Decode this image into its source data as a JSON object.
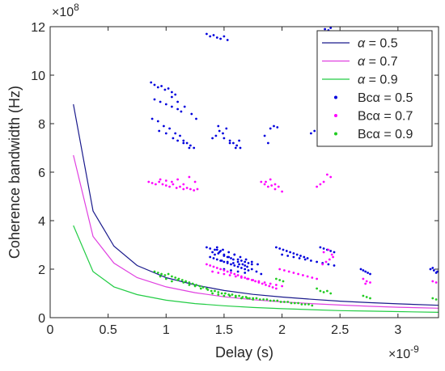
{
  "chart_data": {
    "type": "scatter",
    "title": "",
    "xlabel": "Delay (s)",
    "ylabel": "Coherence bandwidth (Hz)",
    "x_exponent": "×10",
    "x_exponent_power": "-9",
    "y_exponent": "×10",
    "y_exponent_power": "8",
    "xlim": [
      0,
      3.35
    ],
    "ylim": [
      0,
      12
    ],
    "xticks": [
      0,
      0.5,
      1,
      1.5,
      2,
      2.5,
      3
    ],
    "xtick_labels": [
      "0",
      "0.5",
      "1",
      "1.5",
      "2",
      "2.5",
      "3"
    ],
    "yticks": [
      0,
      2,
      4,
      6,
      8,
      10,
      12
    ],
    "ytick_labels": [
      "0",
      "2",
      "4",
      "6",
      "8",
      "10",
      "12"
    ],
    "grid": false,
    "legend_position": "top-right",
    "series": [
      {
        "name": "α = 0.5",
        "name_prefix": "α",
        "name_suffix": " = 0.5",
        "kind": "line",
        "color": "#1a1a8c",
        "x": [
          0.2,
          0.37,
          0.55,
          0.75,
          1.0,
          1.25,
          1.5,
          1.75,
          2.0,
          2.25,
          2.5,
          2.75,
          3.0,
          3.35
        ],
        "y": [
          8.8,
          4.4,
          2.95,
          2.15,
          1.65,
          1.35,
          1.12,
          0.96,
          0.85,
          0.76,
          0.68,
          0.62,
          0.57,
          0.51
        ]
      },
      {
        "name": "α = 0.7",
        "name_prefix": "α",
        "name_suffix": " = 0.7",
        "kind": "line",
        "color": "#e040e0",
        "x": [
          0.2,
          0.37,
          0.55,
          0.75,
          1.0,
          1.25,
          1.5,
          1.75,
          2.0,
          2.25,
          2.5,
          2.75,
          3.0,
          3.35
        ],
        "y": [
          6.7,
          3.35,
          2.25,
          1.65,
          1.27,
          1.03,
          0.86,
          0.74,
          0.65,
          0.58,
          0.52,
          0.47,
          0.43,
          0.39
        ]
      },
      {
        "name": "α = 0.9",
        "name_prefix": "α",
        "name_suffix": " = 0.9",
        "kind": "line",
        "color": "#22cc44",
        "x": [
          0.2,
          0.37,
          0.55,
          0.75,
          1.0,
          1.25,
          1.5,
          1.75,
          2.0,
          2.25,
          2.5,
          2.75,
          3.0,
          3.35
        ],
        "y": [
          3.8,
          1.9,
          1.27,
          0.95,
          0.72,
          0.58,
          0.49,
          0.42,
          0.37,
          0.33,
          0.29,
          0.27,
          0.25,
          0.22
        ]
      },
      {
        "name": "Bcα = 0.5",
        "name_prefix": "Bcα",
        "name_suffix": " = 0.5",
        "kind": "points",
        "color": "#0000dd",
        "x": [
          0.87,
          0.9,
          0.93,
          0.96,
          0.99,
          1.02,
          1.05,
          1.08,
          0.9,
          0.95,
          1.0,
          1.05,
          1.1,
          1.13,
          0.88,
          0.93,
          0.98,
          1.03,
          1.08,
          1.12,
          1.15,
          1.18,
          1.21,
          1.24,
          0.94,
          1.0,
          1.06,
          1.1,
          1.15,
          1.2,
          1.05,
          1.1,
          1.16,
          1.22,
          1.26,
          1.4,
          1.43,
          1.46,
          1.49,
          1.52,
          1.55,
          1.58,
          1.61,
          1.64,
          1.45,
          1.5,
          1.55,
          1.6,
          1.63,
          1.35,
          1.38,
          1.41,
          1.44,
          1.47,
          1.5,
          1.53,
          1.9,
          1.93,
          1.96,
          1.85,
          1.88,
          2.25,
          2.28,
          2.34,
          2.37,
          2.4,
          2.42,
          1.35,
          1.38,
          1.44,
          1.47,
          1.4,
          1.42,
          1.45,
          1.5,
          1.53,
          1.56,
          1.59,
          1.62,
          1.65,
          1.68,
          1.71,
          1.74,
          1.38,
          1.41,
          1.44,
          1.47,
          1.5,
          1.53,
          1.56,
          1.59,
          1.62,
          1.65,
          1.68,
          1.71,
          1.42,
          1.46,
          1.5,
          1.54,
          1.58,
          1.62,
          1.66,
          1.7,
          1.74,
          1.78,
          1.82,
          1.44,
          1.49,
          1.54,
          1.59,
          1.64,
          1.69,
          1.74,
          1.79,
          1.48,
          1.53,
          1.58,
          1.63,
          1.68,
          1.5,
          1.56,
          1.62,
          1.68,
          1.95,
          1.98,
          2.01,
          2.04,
          2.07,
          2.1,
          2.13,
          2.16,
          2.19,
          2.22,
          2.0,
          2.05,
          2.1,
          2.15,
          2.2,
          2.25,
          2.3,
          2.35,
          2.4,
          2.45,
          2.33,
          2.36,
          2.39,
          2.42,
          2.45,
          2.68,
          2.7,
          2.72,
          2.74,
          2.76,
          3.28,
          3.31,
          3.34,
          3.3,
          3.33
        ],
        "y": [
          9.7,
          9.6,
          9.5,
          9.55,
          9.4,
          9.45,
          9.3,
          9.2,
          9.0,
          8.9,
          8.8,
          8.7,
          8.6,
          8.5,
          8.2,
          8.1,
          7.9,
          7.8,
          7.6,
          7.5,
          7.3,
          7.2,
          7.1,
          7.0,
          7.7,
          7.6,
          7.4,
          7.3,
          7.2,
          7.0,
          9.1,
          8.9,
          8.7,
          8.4,
          8.2,
          7.4,
          7.5,
          7.7,
          7.6,
          7.8,
          7.3,
          7.2,
          7.1,
          7.0,
          7.9,
          7.4,
          7.2,
          7.0,
          7.3,
          11.7,
          11.6,
          11.65,
          11.55,
          11.5,
          11.6,
          11.45,
          7.8,
          7.9,
          7.85,
          7.5,
          7.2,
          7.6,
          7.7,
          11.8,
          11.9,
          11.85,
          11.95,
          2.9,
          2.85,
          2.8,
          2.75,
          2.7,
          2.6,
          2.65,
          2.55,
          2.5,
          2.45,
          2.6,
          2.4,
          2.35,
          2.3,
          2.25,
          2.2,
          2.5,
          2.45,
          2.4,
          2.35,
          2.3,
          2.25,
          2.2,
          2.15,
          2.1,
          2.05,
          2.0,
          1.95,
          2.8,
          2.7,
          2.6,
          2.5,
          2.4,
          2.3,
          2.2,
          2.1,
          2.0,
          1.9,
          1.8,
          2.9,
          2.8,
          2.7,
          2.6,
          2.5,
          2.4,
          2.3,
          2.2,
          2.35,
          2.3,
          2.25,
          2.2,
          2.15,
          2.0,
          1.95,
          1.9,
          1.85,
          2.9,
          2.85,
          2.8,
          2.75,
          2.7,
          2.65,
          2.6,
          2.55,
          2.5,
          2.45,
          2.6,
          2.55,
          2.5,
          2.45,
          2.4,
          2.35,
          2.3,
          2.25,
          2.2,
          2.15,
          2.9,
          2.85,
          2.8,
          2.75,
          2.7,
          2.0,
          1.95,
          1.9,
          1.85,
          1.8,
          2.0,
          1.95,
          1.9,
          2.05,
          1.85
        ]
      },
      {
        "name": "Bcα = 0.7",
        "name_prefix": "Bcα",
        "name_suffix": " = 0.7",
        "kind": "points",
        "color": "#ff00ff",
        "x": [
          0.85,
          0.88,
          0.91,
          0.94,
          0.97,
          1.0,
          1.03,
          1.06,
          1.09,
          1.12,
          1.15,
          1.18,
          1.21,
          1.24,
          1.27,
          0.95,
          1.0,
          1.05,
          1.1,
          1.15,
          1.2,
          1.25,
          1.82,
          1.85,
          1.88,
          1.91,
          1.94,
          1.97,
          2.0,
          1.86,
          1.9,
          1.94,
          2.3,
          2.33,
          2.36,
          2.39,
          2.42,
          1.35,
          1.38,
          1.41,
          1.44,
          1.47,
          1.5,
          1.53,
          1.56,
          1.59,
          1.62,
          1.65,
          1.68,
          1.71,
          1.74,
          1.77,
          1.8,
          1.83,
          1.86,
          1.89,
          1.92,
          1.95,
          1.4,
          1.45,
          1.5,
          1.55,
          1.6,
          1.65,
          1.7,
          1.75,
          1.8,
          1.85,
          1.9,
          1.95,
          2.0,
          1.98,
          2.02,
          2.06,
          2.1,
          2.14,
          2.18,
          2.22,
          2.26,
          2.3,
          2.35,
          2.38,
          2.41,
          2.44,
          2.36,
          2.4,
          2.43,
          2.7,
          2.73,
          2.76,
          2.72,
          3.3,
          3.33
        ],
        "y": [
          5.6,
          5.55,
          5.5,
          5.6,
          5.5,
          5.45,
          5.4,
          5.5,
          5.35,
          5.4,
          5.3,
          5.35,
          5.3,
          5.25,
          5.3,
          5.7,
          5.65,
          5.6,
          5.7,
          5.5,
          5.8,
          5.6,
          5.6,
          5.5,
          5.4,
          5.45,
          5.3,
          5.4,
          5.2,
          5.6,
          5.7,
          5.5,
          5.4,
          5.5,
          5.6,
          5.9,
          5.8,
          2.2,
          2.15,
          2.1,
          2.05,
          2.0,
          1.95,
          1.9,
          1.85,
          1.8,
          1.75,
          1.7,
          1.65,
          1.6,
          1.55,
          1.5,
          1.45,
          1.4,
          1.35,
          1.3,
          1.25,
          1.2,
          1.9,
          1.85,
          1.8,
          1.75,
          1.7,
          1.65,
          1.6,
          1.55,
          1.5,
          1.45,
          1.4,
          1.35,
          1.3,
          2.0,
          1.95,
          1.9,
          1.85,
          1.8,
          1.75,
          1.7,
          1.65,
          1.6,
          2.2,
          2.3,
          2.4,
          2.5,
          2.7,
          2.8,
          2.6,
          1.6,
          1.5,
          1.45,
          1.4,
          1.5,
          1.45
        ]
      },
      {
        "name": "Bcα = 0.9",
        "name_prefix": "Bcα",
        "name_suffix": " = 0.9",
        "kind": "points",
        "color": "#22cc22",
        "x": [
          0.9,
          0.93,
          0.96,
          0.99,
          1.02,
          1.05,
          1.08,
          1.11,
          1.14,
          1.17,
          1.2,
          1.23,
          1.26,
          1.29,
          1.32,
          1.35,
          0.95,
          1.0,
          1.05,
          1.1,
          1.15,
          1.2,
          1.25,
          1.3,
          1.36,
          1.39,
          1.42,
          1.45,
          1.48,
          1.51,
          1.54,
          1.57,
          1.6,
          1.63,
          1.66,
          1.69,
          1.72,
          1.75,
          1.78,
          1.81,
          1.84,
          1.87,
          1.9,
          1.93,
          1.96,
          1.99,
          2.02,
          2.05,
          2.08,
          2.11,
          2.14,
          2.17,
          2.2,
          2.23,
          2.26,
          1.4,
          1.45,
          1.5,
          1.55,
          1.6,
          1.65,
          1.7,
          1.75,
          2.3,
          2.33,
          2.36,
          2.39,
          2.42,
          2.7,
          2.73,
          2.76,
          3.3,
          3.33,
          1.95,
          1.98,
          2.01
        ],
        "y": [
          1.9,
          1.85,
          1.8,
          1.75,
          1.8,
          1.7,
          1.65,
          1.6,
          1.55,
          1.5,
          1.45,
          1.4,
          1.35,
          1.3,
          1.25,
          1.2,
          1.7,
          1.6,
          1.5,
          1.55,
          1.45,
          1.35,
          1.3,
          1.2,
          1.15,
          1.1,
          1.1,
          1.05,
          1.0,
          1.0,
          0.95,
          0.95,
          0.9,
          0.9,
          0.85,
          0.85,
          0.8,
          0.8,
          0.8,
          0.75,
          0.75,
          0.75,
          0.7,
          0.7,
          0.7,
          0.65,
          0.65,
          0.65,
          0.6,
          0.6,
          0.6,
          0.55,
          0.55,
          0.55,
          0.5,
          1.0,
          0.95,
          0.9,
          0.9,
          0.85,
          0.8,
          0.8,
          0.75,
          1.2,
          1.1,
          1.05,
          1.1,
          1.0,
          0.9,
          0.85,
          0.8,
          0.8,
          0.75,
          1.6,
          1.55,
          1.5
        ]
      }
    ]
  }
}
